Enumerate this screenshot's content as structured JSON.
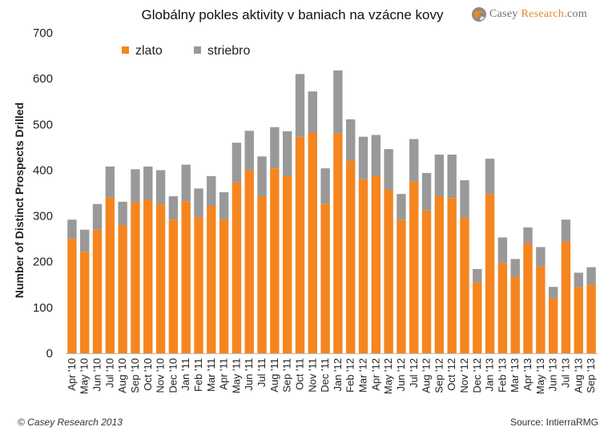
{
  "header": {
    "title": "Globálny pokles aktivity v baniach na vzácne kovy",
    "brand_main": "Casey ",
    "brand_accent": "Research",
    "brand_suffix": ".com"
  },
  "footer": {
    "copyright": "© Casey Research 2013",
    "source": "Source: IntierraRMG"
  },
  "colors": {
    "gold": "#f5851f",
    "silver": "#999999",
    "axis": "#bbbbbb"
  },
  "chart_data": {
    "type": "bar",
    "stacked": true,
    "title": "Globálny pokles aktivity v baniach na vzácne kovy",
    "ylabel": "Number of Distinct Prospects Drilled",
    "xlabel": "",
    "ylim": [
      0,
      700
    ],
    "yticks": [
      0,
      100,
      200,
      300,
      400,
      500,
      600,
      700
    ],
    "grid": false,
    "legend_position": "top-left",
    "categories": [
      "Apr '10",
      "May '10",
      "Jun '10",
      "Jul '10",
      "Aug '10",
      "Sep '10",
      "Oct '10",
      "Nov '10",
      "Dec '10",
      "Jan '11",
      "Feb '11",
      "Mar '11",
      "Apr '11",
      "May '11",
      "Jun '11",
      "Jul '11",
      "Aug '11",
      "Sep '11",
      "Oct '11",
      "Nov '11",
      "Dec '11",
      "Jan '12",
      "Feb '12",
      "Mar '12",
      "Apr '12",
      "May '12",
      "Jun '12",
      "Jul '12",
      "Aug '12",
      "Sep '12",
      "Oct '12",
      "Nov '12",
      "Dec '12",
      "Jan '13",
      "Feb '13",
      "Mar '13",
      "Apr '13",
      "May '13",
      "Jun '13",
      "Jul '13",
      "Aug '13",
      "Sep '13"
    ],
    "series": [
      {
        "name": "zlato",
        "color": "#f5851f",
        "values": [
          250,
          222,
          270,
          340,
          280,
          330,
          335,
          325,
          292,
          332,
          297,
          322,
          292,
          373,
          400,
          343,
          404,
          387,
          473,
          482,
          327,
          480,
          421,
          380,
          387,
          357,
          291,
          375,
          312,
          343,
          339,
          296,
          155,
          348,
          197,
          167,
          240,
          190,
          120,
          244,
          145,
          150
        ]
      },
      {
        "name": "striebro",
        "color": "#999999",
        "values": [
          42,
          48,
          56,
          68,
          51,
          72,
          73,
          75,
          51,
          80,
          63,
          65,
          60,
          87,
          86,
          87,
          90,
          98,
          137,
          90,
          77,
          138,
          90,
          93,
          90,
          89,
          57,
          93,
          82,
          91,
          95,
          82,
          29,
          77,
          56,
          39,
          35,
          42,
          25,
          48,
          31,
          38
        ]
      }
    ]
  }
}
